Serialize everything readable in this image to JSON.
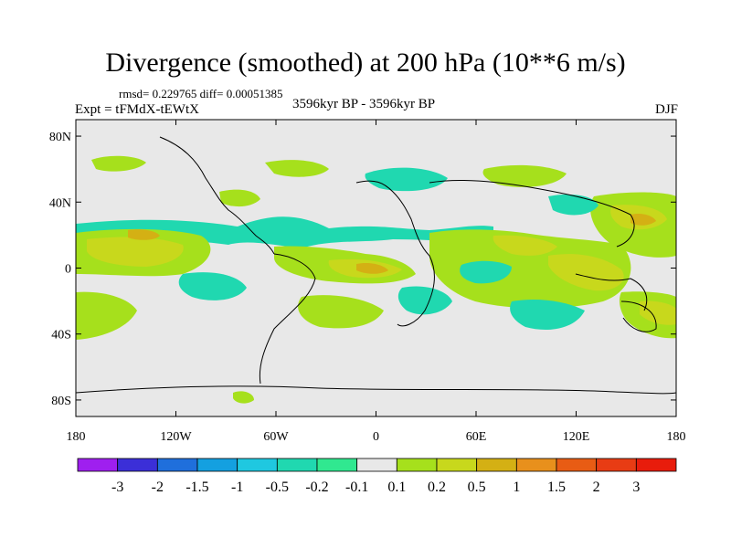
{
  "header": {
    "title": "Divergence (smoothed) at 200 hPa (10**6 m/s)",
    "stats": "rmsd= 0.229765 diff= 0.00051385",
    "experiment": "Expt = tFMdX-tEWtX",
    "period": "3596kyr BP - 3596kyr BP",
    "season": "DJF"
  },
  "axes": {
    "lat_labels": [
      "80N",
      "40N",
      "0",
      "40S",
      "80S"
    ],
    "lon_labels": [
      "180",
      "120W",
      "60W",
      "0",
      "60E",
      "120E",
      "180"
    ]
  },
  "colorbar": {
    "labels": [
      "-3",
      "-2",
      "-1.5",
      "-1",
      "-0.5",
      "-0.2",
      "-0.1",
      "0.1",
      "0.2",
      "0.5",
      "1",
      "1.5",
      "2",
      "3"
    ],
    "colors": [
      "#9f1fef",
      "#3b2fd8",
      "#1f6fdc",
      "#14a0e0",
      "#1fc8e0",
      "#20d8b0",
      "#30e890",
      "#e8e8e8",
      "#a6e01c",
      "#c8d81c",
      "#d4b014",
      "#e8901c",
      "#e85c14",
      "#e83c14",
      "#e81c0c"
    ]
  },
  "palette": {
    "background": "#e8e8e8",
    "coast": "#000000"
  }
}
